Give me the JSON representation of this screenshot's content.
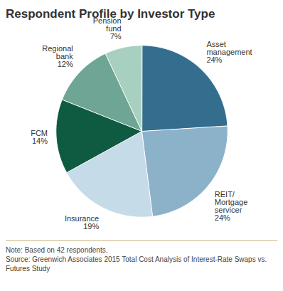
{
  "chart_data": {
    "type": "pie",
    "title": "Respondent Profile by Investor Type",
    "categories": [
      "Asset management",
      "REIT/ Mortgage servicer",
      "Insurance",
      "FCM",
      "Regional bank",
      "Pension fund"
    ],
    "values": [
      24,
      24,
      19,
      14,
      12,
      7
    ],
    "value_labels": [
      "24%",
      "24%",
      "19%",
      "14%",
      "12%",
      "7%"
    ],
    "colors": [
      "#346e8e",
      "#8cb2ca",
      "#c6dbe8",
      "#0f5b42",
      "#6fa595",
      "#a8d0c0"
    ],
    "data_labels": true,
    "note": "Note: Based on 42 respondents.",
    "source": "Source: Greenwich Associates 2015 Total Cost Analysis of Interest-Rate Swaps vs. Futures Study"
  }
}
